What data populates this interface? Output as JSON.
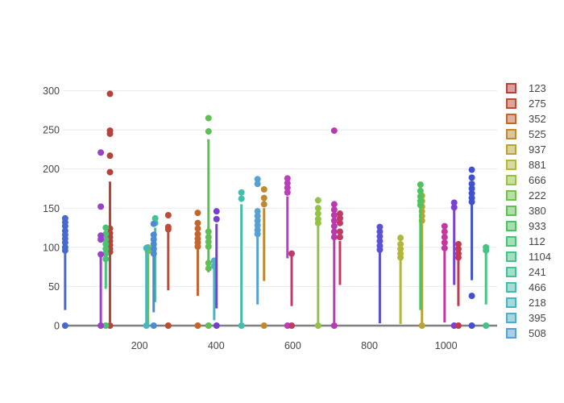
{
  "chart_data": {
    "type": "box",
    "title": "",
    "xlabel": "",
    "ylabel": "",
    "grid": "horizontal-only",
    "background": "#ffffff",
    "grid_color": "#e9eaee",
    "zero_line_color": "#7f7f7f",
    "axis_text_color": "#444444",
    "x_ticks": [
      200,
      400,
      600,
      800,
      1000
    ],
    "x_tick_labels": [
      "200",
      "400",
      "600",
      "800",
      "1000"
    ],
    "y_ticks": [
      0,
      50,
      100,
      150,
      200,
      250,
      300
    ],
    "y_tick_labels": [
      "0",
      "50",
      "100",
      "150",
      "200",
      "250",
      "300"
    ],
    "x_range": [
      0,
      1133
    ],
    "y_range": [
      0,
      310
    ],
    "legend_position": "right",
    "legend_clipped": true,
    "series": [
      {
        "name": "123",
        "x": 123,
        "color": "#b8413b",
        "whisker": [
          4,
          184
        ],
        "points": [
          296,
          249,
          245,
          217,
          196,
          124,
          118,
          113,
          108,
          103,
          98,
          94
        ],
        "zero_marker": true,
        "in_legend": true
      },
      {
        "name": "275",
        "x": 275,
        "color": "#c04b35",
        "whisker": [
          45,
          120
        ],
        "points": [
          141,
          126,
          123
        ],
        "zero_marker": true,
        "in_legend": true
      },
      {
        "name": "352",
        "x": 352,
        "color": "#c2662f",
        "whisker": [
          38,
          100
        ],
        "points": [
          144,
          131,
          124,
          117,
          111,
          106,
          101
        ],
        "zero_marker": true,
        "in_legend": true
      },
      {
        "name": "525",
        "x": 525,
        "color": "#bd8a33",
        "whisker": [
          57,
          150
        ],
        "points": [
          174,
          163,
          155
        ],
        "zero_marker": true,
        "in_legend": true
      },
      {
        "name": "937",
        "x": 937,
        "color": "#b9a238",
        "whisker": [
          2,
          130
        ],
        "points": [
          166,
          159,
          152,
          146,
          140,
          134
        ],
        "zero_marker": true,
        "in_legend": true
      },
      {
        "name": "881",
        "x": 881,
        "color": "#b0b83c",
        "whisker": [
          2,
          85
        ],
        "points": [
          112,
          104,
          98,
          92,
          87
        ],
        "zero_marker": false,
        "in_legend": true
      },
      {
        "name": "666",
        "x": 666,
        "color": "#95c242",
        "whisker": [
          2,
          130
        ],
        "points": [
          160,
          150,
          143,
          136,
          131
        ],
        "zero_marker": true,
        "in_legend": true
      },
      {
        "name": "222",
        "x": 222,
        "color": "#72c04a",
        "whisker": [
          0,
          96
        ],
        "points": [
          100,
          95
        ],
        "zero_marker": false,
        "in_legend": true
      },
      {
        "name": "380",
        "x": 380,
        "color": "#5ec053",
        "whisker": [
          68,
          238
        ],
        "points": [
          265,
          248,
          120,
          113,
          107,
          101,
          80,
          73
        ],
        "zero_marker": true,
        "in_legend": true
      },
      {
        "name": "933",
        "x": 933,
        "color": "#4fc15e",
        "whisker": [
          20,
          150
        ],
        "points": [
          180,
          172,
          165,
          159,
          154
        ],
        "zero_marker": false,
        "in_legend": true
      },
      {
        "name": "112",
        "x": 112,
        "color": "#49c272",
        "whisker": [
          47,
          90
        ],
        "points": [
          125,
          117,
          110,
          104,
          98,
          92,
          85
        ],
        "zero_marker": true,
        "in_legend": true
      },
      {
        "name": "1104",
        "x": 1104,
        "color": "#47c286",
        "whisker": [
          27,
          95
        ],
        "points": [
          100,
          96
        ],
        "zero_marker": true,
        "in_legend": true
      },
      {
        "name": "241",
        "x": 241,
        "color": "#45c199",
        "whisker": [
          30,
          125
        ],
        "points": [
          137,
          131
        ],
        "zero_marker": false,
        "in_legend": true
      },
      {
        "name": "466",
        "x": 466,
        "color": "#44bdab",
        "whisker": [
          4,
          155
        ],
        "points": [
          170,
          162
        ],
        "zero_marker": true,
        "in_legend": true
      },
      {
        "name": "218",
        "x": 218,
        "color": "#48b7bd",
        "whisker": [
          0,
          94
        ],
        "points": [
          99
        ],
        "zero_marker": true,
        "in_legend": true
      },
      {
        "name": "395",
        "x": 395,
        "color": "#4faec8",
        "whisker": [
          7,
          78
        ],
        "points": [
          83,
          76
        ],
        "zero_marker": false,
        "in_legend": true
      },
      {
        "name": "508",
        "x": 508,
        "color": "#57a0d1",
        "whisker": [
          27,
          115
        ],
        "points": [
          187,
          181,
          146,
          140,
          134,
          128,
          122,
          117
        ],
        "zero_marker": false,
        "in_legend": true
      },
      {
        "name": "",
        "x": 237,
        "color": "#4a8cd3",
        "whisker": [
          17,
          95
        ],
        "points": [
          130,
          116,
          110,
          104,
          98,
          92
        ],
        "zero_marker": true,
        "in_legend": false
      },
      {
        "name": "",
        "x": 6,
        "color": "#4569cf",
        "whisker": [
          20,
          134
        ],
        "points": [
          137,
          132,
          127,
          121,
          116,
          111,
          106,
          100,
          96
        ],
        "zero_marker": true,
        "in_legend": false
      },
      {
        "name": "",
        "x": 1067,
        "color": "#4150cd",
        "whisker": [
          58,
          158
        ],
        "points": [
          199,
          189,
          181,
          175,
          169,
          163,
          158,
          38
        ],
        "zero_marker": true,
        "in_legend": false
      },
      {
        "name": "",
        "x": 827,
        "color": "#5a51d6",
        "whisker": [
          3,
          98
        ],
        "points": [
          126,
          120,
          114,
          108,
          102,
          97
        ],
        "zero_marker": false,
        "in_legend": false
      },
      {
        "name": "",
        "x": 1021,
        "color": "#7a42d2",
        "whisker": [
          52,
          148
        ],
        "points": [
          157,
          151
        ],
        "zero_marker": true,
        "in_legend": false
      },
      {
        "name": "",
        "x": 401,
        "color": "#7440cf",
        "whisker": [
          22,
          130
        ],
        "points": [
          146,
          136
        ],
        "zero_marker": true,
        "in_legend": false
      },
      {
        "name": "",
        "x": 99,
        "color": "#9b40c8",
        "whisker": [
          0,
          91
        ],
        "points": [
          221,
          152,
          115,
          110,
          91
        ],
        "zero_marker": true,
        "in_legend": false
      },
      {
        "name": "",
        "x": 586,
        "color": "#bb3ebc",
        "whisker": [
          86,
          165
        ],
        "points": [
          188,
          182,
          176,
          170
        ],
        "zero_marker": true,
        "in_legend": false
      },
      {
        "name": "",
        "x": 708,
        "color": "#ba39b0",
        "whisker": [
          4,
          110
        ],
        "points": [
          249,
          155,
          148,
          141,
          134,
          127,
          120,
          113
        ],
        "zero_marker": true,
        "in_legend": false
      },
      {
        "name": "",
        "x": 996,
        "color": "#c437a0",
        "whisker": [
          4,
          97
        ],
        "points": [
          127,
          120,
          113,
          106,
          99
        ],
        "zero_marker": false,
        "in_legend": false
      },
      {
        "name": "",
        "x": 723,
        "color": "#c03a62",
        "whisker": [
          52,
          108
        ],
        "points": [
          143,
          137,
          131,
          120,
          113
        ],
        "zero_marker": false,
        "in_legend": false
      },
      {
        "name": "",
        "x": 597,
        "color": "#bf3a68",
        "whisker": [
          25,
          88
        ],
        "points": [
          92
        ],
        "zero_marker": true,
        "in_legend": false
      },
      {
        "name": "",
        "x": 1032,
        "color": "#c23a4f",
        "whisker": [
          25,
          85
        ],
        "points": [
          104,
          98,
          92,
          87
        ],
        "zero_marker": true,
        "in_legend": false
      }
    ]
  }
}
